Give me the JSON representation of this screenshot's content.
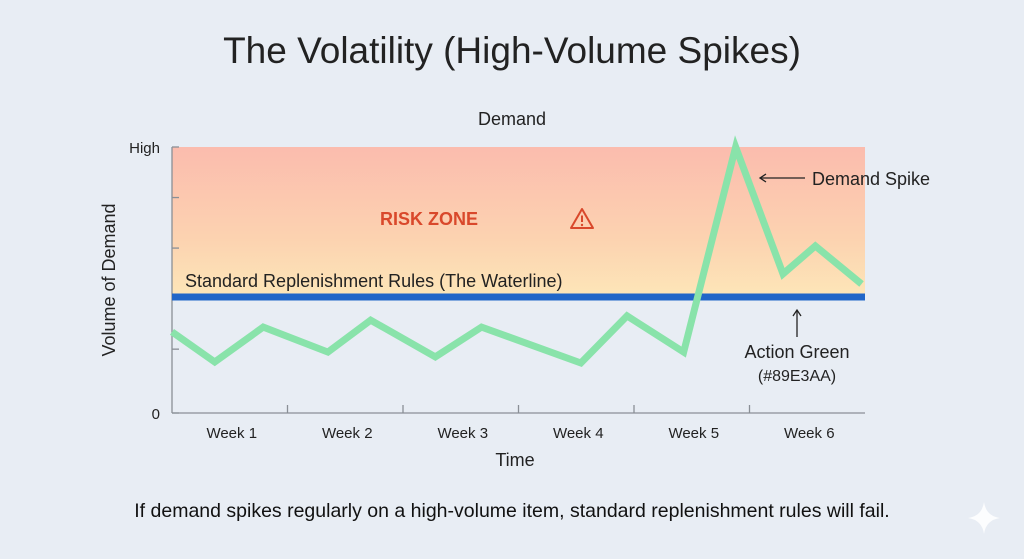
{
  "title": "The Volatility (High-Volume Spikes)",
  "caption": "If demand spikes regularly on a high-volume item, standard replenishment rules will fail.",
  "chart_data": {
    "type": "line",
    "title": "Demand",
    "xlabel": "Time",
    "ylabel": "Volume of Demand",
    "xlim": [
      0,
      6
    ],
    "ylim": [
      0,
      100
    ],
    "y_tick_labels": [
      {
        "value": 0,
        "label": "0"
      },
      {
        "value": 100,
        "label": "High"
      }
    ],
    "y_minor_ticks": [
      24,
      62,
      81
    ],
    "x_tick_labels": [
      "Week 1",
      "Week 2",
      "Week 3",
      "Week 4",
      "Week 5",
      "Week 6"
    ],
    "grid": false,
    "series": [
      {
        "name": "Demand",
        "color": "#89E3AA",
        "x": [
          0,
          0.37,
          0.79,
          1.35,
          1.72,
          2.28,
          2.68,
          3.54,
          3.94,
          4.43,
          4.88,
          5.29,
          5.57,
          5.97
        ],
        "y": [
          30.5,
          19.2,
          32.3,
          22.9,
          34.9,
          21.1,
          32.3,
          18.8,
          36.5,
          22.9,
          100,
          52.3,
          62.8,
          48.5
        ]
      }
    ],
    "waterline": {
      "value": 43.6,
      "label": "Standard Replenishment Rules (The Waterline)",
      "color": "#2166c8"
    },
    "risk_zone": {
      "label": "RISK ZONE",
      "icon": "warning-triangle-icon",
      "color": "#d9482b"
    },
    "annotations": {
      "spike": "Demand Spike",
      "action_green": "Action Green",
      "action_green_hex": "(#89E3AA)"
    }
  }
}
